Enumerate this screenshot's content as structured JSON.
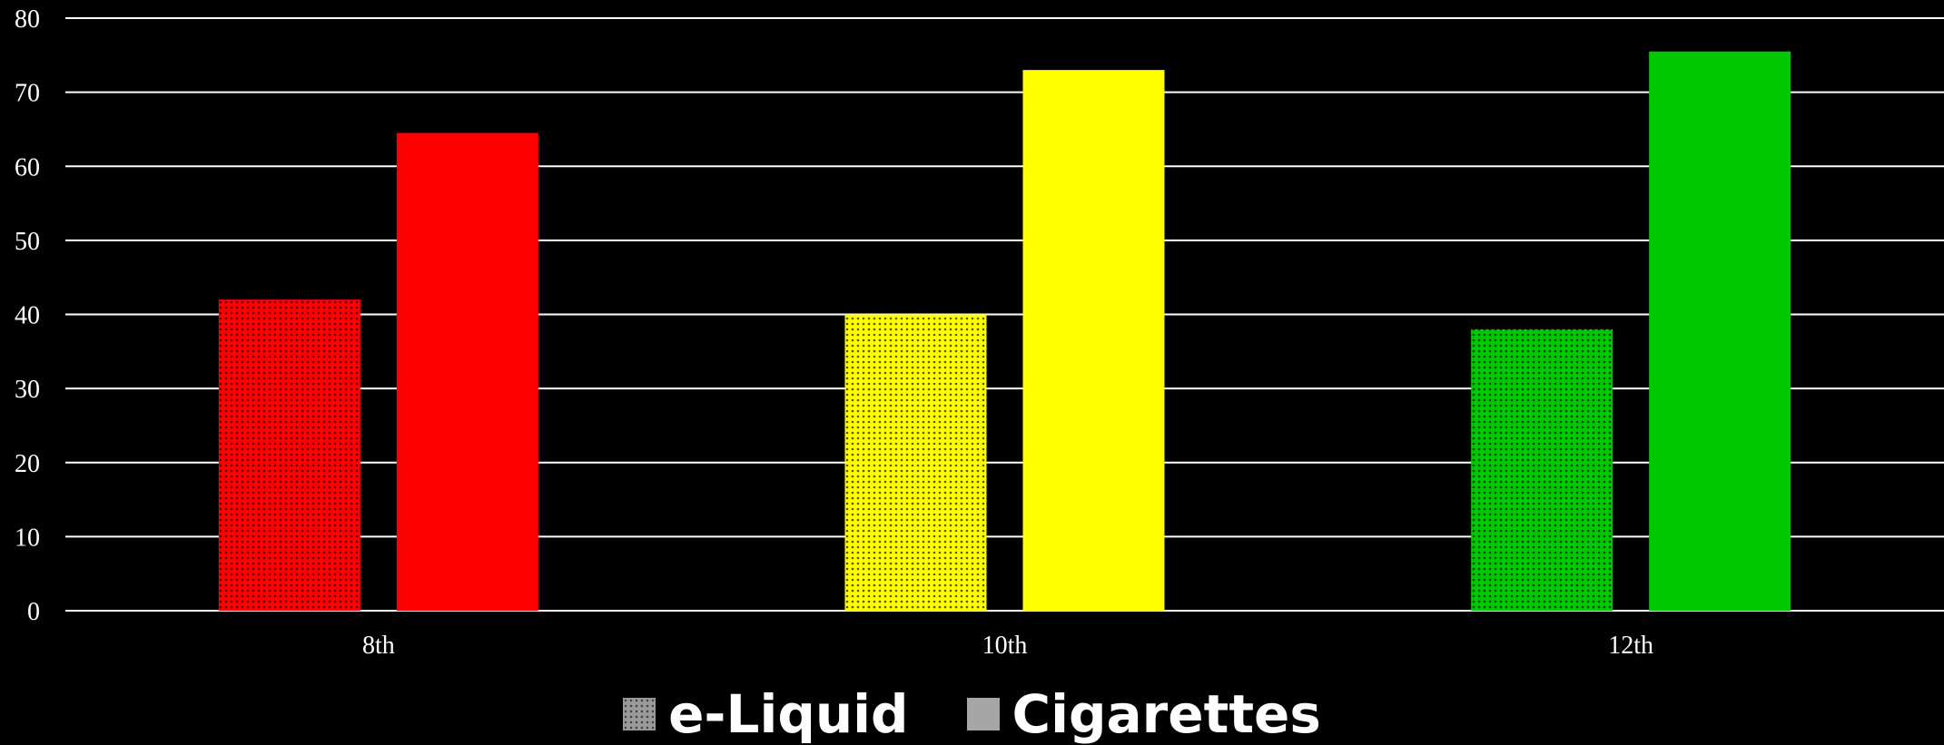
{
  "chart_data": {
    "type": "bar",
    "categories": [
      "8th",
      "10th",
      "12th"
    ],
    "series": [
      {
        "name": "e-Liquid",
        "values": [
          42,
          40,
          38
        ],
        "pattern": "dotted"
      },
      {
        "name": "Cigarettes",
        "values": [
          64.5,
          73,
          75.5
        ],
        "pattern": "solid"
      }
    ],
    "category_colors": [
      "#ff0000",
      "#ffff00",
      "#00c800"
    ],
    "legend_swatch_color": "#a6a6a6",
    "ylim": [
      0,
      80
    ],
    "yticks": [
      "0",
      "10",
      "20",
      "30",
      "40",
      "50",
      "60",
      "70",
      "80"
    ],
    "grid": true,
    "legend_position": "bottom",
    "background": "#000000",
    "gridline_color": "#ffffff"
  }
}
